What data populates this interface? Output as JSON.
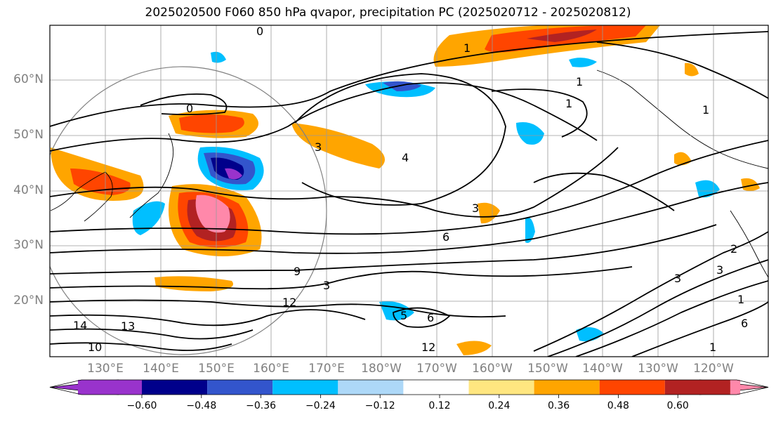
{
  "title": "2025020500 F060 850 hPa qvapor, precipitation PC (2025020712 - 2025020812)",
  "map": {
    "lat_labels": [
      "60°N",
      "50°N",
      "40°N",
      "30°N",
      "20°N"
    ],
    "lat_values": [
      60,
      50,
      40,
      30,
      20
    ],
    "lon_labels": [
      "130°E",
      "140°E",
      "150°E",
      "160°E",
      "170°E",
      "180°W",
      "170°W",
      "160°W",
      "150°W",
      "140°W",
      "130°W",
      "120°W"
    ],
    "lon_values": [
      130,
      140,
      150,
      160,
      170,
      180,
      190,
      200,
      210,
      220,
      230,
      240
    ],
    "contour_labels": [
      "0",
      "1",
      "1",
      "1",
      "1",
      "3",
      "3",
      "3",
      "3",
      "6",
      "6",
      "9",
      "12",
      "12",
      "13",
      "14",
      "10",
      "1",
      "3",
      "5",
      "6",
      "4",
      "2",
      "0",
      "1"
    ],
    "colors": {
      "below_-0.60": "#9933cc",
      "-0.60_-0.48": "#00008b",
      "-0.48_-0.36": "#3355cc",
      "-0.36_-0.24": "#00bfff",
      "-0.24_-0.12": "#add8f8",
      "-0.12_0.12": "#ffffff",
      "0.12_0.24": "#ffe680",
      "0.24_0.36": "#ffa500",
      "0.36_0.48": "#ff4500",
      "0.48_0.60": "#b22222",
      "above_0.60": "#ff88aa"
    }
  },
  "colorbar": {
    "ticks": [
      "−0.60",
      "−0.48",
      "−0.36",
      "−0.24",
      "−0.12",
      "0.12",
      "0.24",
      "0.36",
      "0.48",
      "0.60"
    ],
    "colors": [
      "#9933cc",
      "#00008b",
      "#3355cc",
      "#00bfff",
      "#add8f8",
      "#ffffff",
      "#ffe680",
      "#ffa500",
      "#ff4500",
      "#b22222",
      "#ff88aa"
    ]
  }
}
